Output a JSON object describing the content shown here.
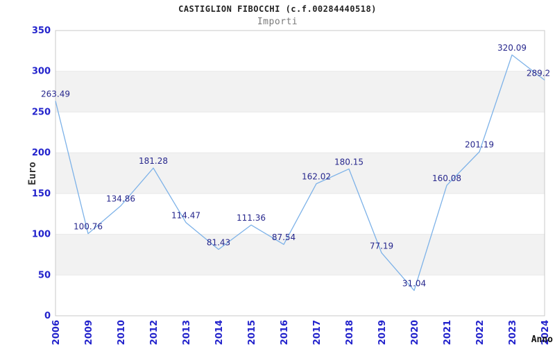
{
  "chart_data": {
    "type": "line",
    "title": "CASTIGLION FIBOCCHI (c.f.00284440518)",
    "subtitle": "Importi",
    "xlabel": "Anno",
    "ylabel": "Euro",
    "categories": [
      "2006",
      "2009",
      "2010",
      "2012",
      "2013",
      "2014",
      "2015",
      "2016",
      "2017",
      "2018",
      "2019",
      "2020",
      "2021",
      "2022",
      "2023",
      "2024"
    ],
    "values": [
      263.49,
      100.76,
      134.86,
      181.28,
      114.47,
      81.43,
      111.36,
      87.54,
      162.02,
      180.15,
      77.19,
      31.04,
      160.08,
      201.19,
      320.09,
      289.2
    ],
    "point_labels": [
      "263.49",
      "100.76",
      "134.86",
      "181.28",
      "114.47",
      "81.43",
      "111.36",
      "87.54",
      "162.02",
      "180.15",
      "77.19",
      "31.04",
      "160.08",
      "201.19",
      "320.09",
      "289.2"
    ],
    "ylim": [
      0,
      350
    ],
    "ytick_step": 50,
    "yticks": [
      "0",
      "50",
      "100",
      "150",
      "200",
      "250",
      "300",
      "350"
    ],
    "legend": "none",
    "grid": "horizontal-bands",
    "colors": {
      "line": "#7db2e8",
      "point_label": "#26268c",
      "tick_label": "#2323cc",
      "band": "#f2f2f2",
      "gridline": "#e8e8e8",
      "plot_border": "#c9c9c9",
      "title": "#222222",
      "subtitle": "#7a7a7a",
      "axis_title": "#333333",
      "background": "#ffffff"
    }
  }
}
